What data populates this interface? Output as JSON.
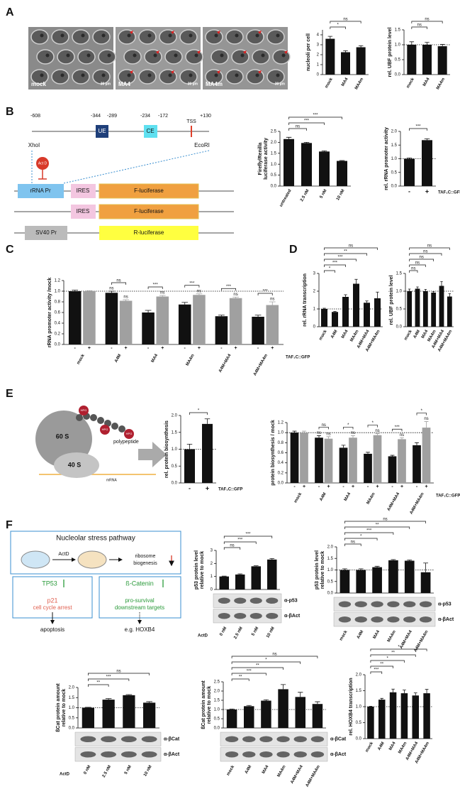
{
  "panels": [
    "A",
    "B",
    "C",
    "D",
    "E",
    "F"
  ],
  "micrographs": {
    "labels": [
      "mock",
      "MA4",
      "MA4m"
    ],
    "scale_bar": "30 µm"
  },
  "promoter": {
    "positions": [
      "-608",
      "-344",
      "-289",
      "-234",
      "-172",
      "+130"
    ],
    "elements": [
      "UE",
      "CE",
      "TSS"
    ],
    "sites": [
      "XhoI",
      "EcoRI"
    ],
    "inhibitor": "Act D",
    "constructs": [
      [
        "rRNA Pr",
        "IRES",
        "F-luciferase"
      ],
      [
        "IRES",
        "F-luciferase"
      ],
      [
        "SV40 Pr",
        "R-luciferase"
      ]
    ]
  },
  "ribosome": {
    "subunits": [
      "60 S",
      "40 S"
    ],
    "label": "HPG",
    "polypeptide": "polypeptide",
    "mrna": "mRNA"
  },
  "pathway": {
    "title": "Nucleolar stress pathway",
    "drug": "ActD",
    "target": [
      "ribosome",
      "biogenesis"
    ],
    "branches": [
      {
        "factor": "TP53",
        "effect": [
          "p21",
          "cell cycle arrest"
        ],
        "outcome": "apoptosis"
      },
      {
        "factor": "ß-Catenin",
        "effect": [
          "pro-survival",
          "downstream targets"
        ],
        "outcome": "e.g. HOXB4"
      }
    ]
  },
  "chart_data": [
    {
      "type": "bar",
      "ylabel": [
        "nucleoli per cell"
      ],
      "categories": [
        "mock",
        "MA4",
        "MA4m"
      ],
      "values": [
        3.6,
        2.25,
        2.75
      ],
      "errors": [
        0.25,
        0.15,
        0.15
      ],
      "color": "#111111",
      "ylim": [
        0,
        4.5
      ],
      "yticks": [
        0,
        1,
        2,
        3,
        4
      ],
      "significance": [
        null,
        "*",
        "ns"
      ]
    },
    {
      "type": "bar",
      "ylabel": [
        "rel. UBF protein level"
      ],
      "categories": [
        "mock",
        "MA4",
        "MA4m"
      ],
      "values": [
        1.0,
        1.0,
        0.95
      ],
      "errors": [
        0.1,
        0.08,
        0.06
      ],
      "color": "#111111",
      "ylim": [
        0,
        1.5
      ],
      "yticks": [
        {
          "value": 0,
          "label": "0.0"
        },
        0.5,
        {
          "value": 1,
          "label": "1.0"
        },
        1.5
      ],
      "reference_line": 1,
      "significance": [
        null,
        "ns",
        "ns"
      ]
    },
    {
      "type": "bar",
      "ylabel": [
        "Firefly/Renilla",
        "luciferase activity"
      ],
      "categories": [
        "untreated",
        "2.5 nM",
        "5 nM",
        "10 nM"
      ],
      "values": [
        2.15,
        1.97,
        1.58,
        1.15
      ],
      "errors": [
        0.08,
        0.03,
        0.03,
        0.02
      ],
      "color": "#111111",
      "ylim": [
        0,
        2.5
      ],
      "yticks": [
        {
          "value": 0,
          "label": "0.0"
        },
        0.5,
        {
          "value": 1,
          "label": "1.0"
        },
        1.5,
        {
          "value": 2,
          "label": "2.0"
        },
        2.5
      ],
      "significance": [
        null,
        "ns",
        "***",
        "***"
      ]
    },
    {
      "type": "bar",
      "ylabel": [
        "rel. rRNA promoter activity"
      ],
      "categories": [
        "-",
        "+"
      ],
      "values": [
        1.0,
        1.68
      ],
      "errors": [
        0.03,
        0.05
      ],
      "color": "#111111",
      "ylim": [
        0,
        2
      ],
      "yticks": [
        {
          "value": 0,
          "label": "0.0"
        },
        0.5,
        {
          "value": 1,
          "label": "1.0"
        },
        1.5,
        {
          "value": 2,
          "label": "2.0"
        }
      ],
      "reference_line": 1,
      "significance": [
        null,
        "***"
      ],
      "xlabel": "TAF₁C::GFP",
      "xlabel_position": "right"
    },
    {
      "type": "grouped_bar",
      "ylabel": [
        "rRNA promoter activity /mock"
      ],
      "categories": [
        "mock",
        "A4M",
        "MA4",
        "MA4m",
        "A4M+MA4",
        "A4M+MA4m"
      ],
      "series": [
        {
          "name": "-",
          "color": "#111111",
          "values": [
            1.0,
            0.97,
            0.6,
            0.75,
            0.53,
            0.52
          ],
          "errors": [
            0.02,
            0.03,
            0.04,
            0.04,
            0.02,
            0.03
          ],
          "significance": [
            null,
            "ns",
            null,
            null,
            null,
            null
          ]
        },
        {
          "name": "+",
          "color": "#a0a0a0",
          "values": [
            1.0,
            0.82,
            0.9,
            0.93,
            0.87,
            0.74
          ],
          "errors": [
            0.01,
            0.02,
            0.02,
            0.02,
            0.02,
            0.06
          ],
          "significance": [
            null,
            "ns",
            "ns",
            "ns",
            "ns",
            "ns"
          ]
        }
      ],
      "pair_significance": [
        null,
        "ns",
        "***",
        "***",
        "***",
        "***"
      ],
      "ylim": [
        0,
        1.2
      ],
      "yticks": [
        {
          "value": 0,
          "label": "0.0"
        },
        0.2,
        0.4,
        0.6,
        0.8,
        {
          "value": 1,
          "label": "1.0"
        },
        1.2
      ],
      "reference_line": 1,
      "xlabel": "TAF₁C::GFP",
      "xlabel_position": "right"
    },
    {
      "type": "bar",
      "ylabel": [
        "rel. rRNA transcription"
      ],
      "categories": [
        "mock",
        "A4M",
        "MA4",
        "MA4m",
        "A4M+MA4",
        "A4M+MA4m"
      ],
      "values": [
        1.0,
        0.83,
        1.68,
        2.42,
        1.35,
        1.6
      ],
      "errors": [
        0.04,
        0.03,
        0.12,
        0.25,
        0.1,
        0.35
      ],
      "color": "#111111",
      "ylim": [
        0,
        3
      ],
      "yticks": [
        0,
        1,
        2,
        3
      ],
      "reference_line": 1,
      "significance": [
        null,
        "*",
        "***",
        "***",
        "**",
        "ns"
      ]
    },
    {
      "type": "bar",
      "ylabel": [
        "rel. UBF protein level"
      ],
      "categories": [
        "mock",
        "A4M",
        "MA4",
        "MA4m",
        "A4M+MA4",
        "A4M+MA4m"
      ],
      "values": [
        1.0,
        1.07,
        1.0,
        0.96,
        1.15,
        0.85
      ],
      "errors": [
        0.06,
        0.05,
        0.05,
        0.03,
        0.12,
        0.08
      ],
      "color": "#111111",
      "ylim": [
        0,
        1.5
      ],
      "yticks": [
        {
          "value": 0,
          "label": "0.0"
        },
        0.5,
        {
          "value": 1,
          "label": "1.0"
        },
        1.5
      ],
      "reference_line": 1,
      "significance": [
        null,
        "ns",
        "ns",
        "ns",
        "ns",
        "ns"
      ]
    },
    {
      "type": "bar",
      "ylabel": [
        "rel. protein biosynthesis"
      ],
      "categories": [
        "-",
        "+"
      ],
      "values": [
        1.0,
        1.75
      ],
      "errors": [
        0.15,
        0.15
      ],
      "color": "#111111",
      "ylim": [
        0,
        2
      ],
      "yticks": [
        {
          "value": 0,
          "label": "0.0"
        },
        0.5,
        {
          "value": 1,
          "label": "1.0"
        },
        1.5,
        {
          "value": 2,
          "label": "2.0"
        }
      ],
      "reference_line": 1,
      "significance": [
        null,
        "*"
      ],
      "xlabel": "TAF₁C::GFP",
      "xlabel_position": "right"
    },
    {
      "type": "grouped_bar",
      "ylabel": [
        "protein biosynthesis / mock"
      ],
      "categories": [
        "mock",
        "A4M",
        "MA4",
        "MA4m",
        "A4M+MA4",
        "A4M+MA4m"
      ],
      "series": [
        {
          "name": "-",
          "color": "#111111",
          "values": [
            1.0,
            0.9,
            0.7,
            0.58,
            0.53,
            0.75
          ],
          "errors": [
            0.03,
            0.04,
            0.05,
            0.03,
            0.02,
            0.05
          ],
          "significance": [
            null,
            "ns",
            null,
            null,
            null,
            null
          ]
        },
        {
          "name": "+",
          "color": "#a0a0a0",
          "values": [
            1.0,
            0.88,
            0.9,
            0.95,
            0.87,
            1.1
          ],
          "errors": [
            0.03,
            0.04,
            0.04,
            0.03,
            0.03,
            0.12
          ],
          "significance": [
            null,
            "ns",
            "ns",
            "ns",
            "ns",
            "ns"
          ]
        }
      ],
      "pair_significance": [
        null,
        "ns",
        "*",
        "*",
        "***",
        "*"
      ],
      "ylim": [
        0,
        1.2
      ],
      "yticks": [
        {
          "value": 0,
          "label": "0.0"
        },
        0.2,
        0.4,
        0.6,
        0.8,
        {
          "value": 1,
          "label": "1.0"
        },
        1.2
      ],
      "reference_line": 1,
      "xlabel": "TAF₁C::GFP",
      "xlabel_position": "right"
    },
    {
      "type": "bar",
      "ylabel": [
        "p53 protein level",
        "relative to mock"
      ],
      "categories": [
        "0 nM",
        "2.5 nM",
        "5 nM",
        "10 nM"
      ],
      "values": [
        1.0,
        1.15,
        1.78,
        2.3
      ],
      "errors": [
        0.03,
        0.05,
        0.04,
        0.08
      ],
      "color": "#111111",
      "ylim": [
        0,
        3
      ],
      "yticks": [
        0,
        1,
        2,
        3
      ],
      "significance": [
        null,
        "ns",
        "***",
        "***"
      ],
      "blot_labels": [
        "α-p53",
        "α-βAct"
      ],
      "xlabel": "ActD",
      "xlabel_position": "left"
    },
    {
      "type": "bar",
      "ylabel": [
        "p53 protein level",
        "relative to mock"
      ],
      "categories": [
        "mock",
        "A4M",
        "MA4",
        "MA4m",
        "A4M+MA4",
        "A4M+MA4m"
      ],
      "values": [
        1.0,
        1.0,
        1.12,
        1.42,
        1.4,
        0.9
      ],
      "errors": [
        0.05,
        0.05,
        0.04,
        0.03,
        0.03,
        0.4
      ],
      "color": "#111111",
      "ylim": [
        0,
        2
      ],
      "yticks": [
        {
          "value": 0,
          "label": "0.0"
        },
        0.5,
        {
          "value": 1,
          "label": "1.0"
        },
        1.5,
        {
          "value": 2,
          "label": "2.0"
        }
      ],
      "reference_line": 1,
      "significance": [
        null,
        "ns",
        "*",
        "***",
        "**",
        "ns"
      ],
      "blot_labels": [
        "α-p53",
        "α-βAct"
      ]
    },
    {
      "type": "bar",
      "ylabel": [
        "ßCat protein amount",
        "relative to mock"
      ],
      "categories": [
        "0 nM",
        "2.5 nM",
        "5 nM",
        "10 nM"
      ],
      "values": [
        1.0,
        1.4,
        1.62,
        1.25
      ],
      "errors": [
        0.02,
        0.05,
        0.03,
        0.05
      ],
      "color": "#111111",
      "ylim": [
        0,
        2
      ],
      "yticks": [
        {
          "value": 0,
          "label": "0.0"
        },
        0.5,
        {
          "value": 1,
          "label": "1.0"
        },
        1.5,
        {
          "value": 2,
          "label": "2.0"
        }
      ],
      "reference_line": 1,
      "significance": [
        null,
        "**",
        "***",
        "ns"
      ],
      "blot_labels": [
        "α-βCat",
        "α-βAct"
      ],
      "xlabel": "ActD",
      "xlabel_position": "left"
    },
    {
      "type": "bar",
      "ylabel": [
        "ßCat protein amount",
        "relative to mock"
      ],
      "categories": [
        "mock",
        "A4M",
        "MA4",
        "MA4m",
        "A4M+MA4",
        "A4M+MA4m"
      ],
      "values": [
        1.0,
        1.18,
        1.48,
        2.1,
        1.68,
        1.3
      ],
      "errors": [
        0.03,
        0.04,
        0.05,
        0.25,
        0.25,
        0.12
      ],
      "color": "#111111",
      "ylim": [
        0,
        2.5
      ],
      "yticks": [
        {
          "value": 0,
          "label": "0.0"
        },
        0.5,
        {
          "value": 1,
          "label": "1.0"
        },
        1.5,
        {
          "value": 2,
          "label": "2.0"
        },
        2.5
      ],
      "reference_line": 1,
      "significance": [
        null,
        "**",
        "***",
        "**",
        "*",
        "ns"
      ],
      "blot_labels": [
        "α-βCat",
        "α-βAct"
      ]
    },
    {
      "type": "bar",
      "ylabel": [
        "rel. HOXB4 transcription"
      ],
      "categories": [
        "mock",
        "A4M",
        "MA4",
        "MA4m",
        "A4M+MA4",
        "A4M+MA4m"
      ],
      "values": [
        1.0,
        1.22,
        1.45,
        1.42,
        1.35,
        1.42
      ],
      "errors": [
        0.01,
        0.04,
        0.1,
        0.1,
        0.08,
        0.12
      ],
      "color": "#111111",
      "ylim": [
        0,
        2
      ],
      "yticks": [
        {
          "value": 0,
          "label": "0.0"
        },
        0.5,
        {
          "value": 1,
          "label": "1.0"
        },
        1.5,
        {
          "value": 2,
          "label": "2.0"
        }
      ],
      "reference_line": 1,
      "significance": [
        null,
        "***",
        "**",
        "*",
        "**",
        "*"
      ]
    }
  ]
}
